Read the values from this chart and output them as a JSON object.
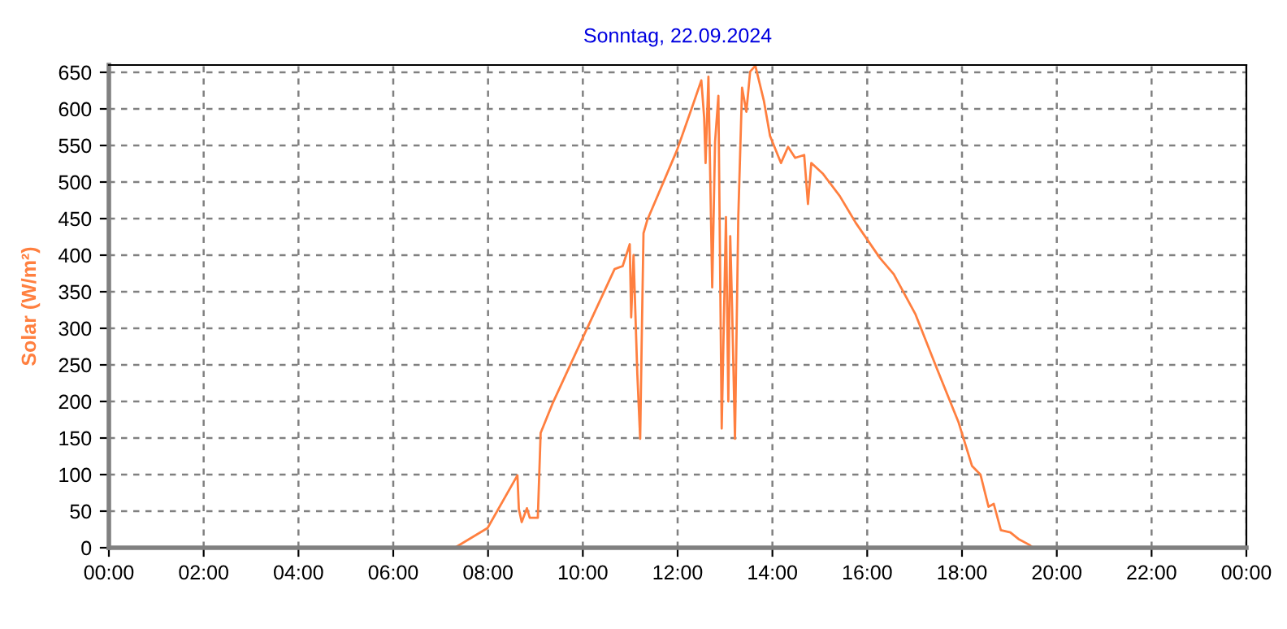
{
  "chart_data": {
    "type": "line",
    "title": "Sonntag, 22.09.2024",
    "ylabel": "Solar (W/m²)",
    "x": [
      0,
      7.3,
      7.99,
      8.62,
      8.65,
      8.71,
      8.82,
      8.88,
      9.05,
      9.11,
      9.36,
      10.04,
      10.67,
      10.84,
      10.99,
      11.02,
      11.07,
      11.15,
      11.21,
      11.24,
      11.28,
      11.36,
      11.99,
      12.33,
      12.5,
      12.56,
      12.59,
      12.65,
      12.73,
      12.79,
      12.86,
      12.93,
      13.02,
      13.07,
      13.11,
      13.15,
      13.21,
      13.28,
      13.36,
      13.45,
      13.53,
      13.64,
      13.82,
      13.95,
      14.18,
      14.33,
      14.48,
      14.67,
      14.75,
      14.82,
      15.07,
      15.42,
      15.76,
      16.27,
      16.56,
      17.02,
      17.47,
      17.93,
      18.21,
      18.39,
      18.56,
      18.67,
      18.82,
      19.02,
      19.19,
      19.42,
      19.5,
      24
    ],
    "series": [
      {
        "color": "#ff7f3f",
        "values": [
          0,
          0,
          27,
          99,
          53,
          35,
          54,
          41,
          41,
          157,
          197,
          293,
          381,
          385,
          415,
          315,
          400,
          237,
          149,
          274,
          430,
          448,
          544,
          607,
          639,
          588,
          526,
          644,
          356,
          555,
          618,
          163,
          452,
          200,
          426,
          326,
          149,
          452,
          629,
          596,
          651,
          659,
          611,
          563,
          526,
          548,
          533,
          537,
          470,
          526,
          511,
          481,
          444,
          396,
          374,
          319,
          245,
          171,
          112,
          100,
          56,
          60,
          24,
          21,
          12,
          4,
          0,
          0
        ]
      }
    ],
    "xlim": [
      0,
      24
    ],
    "xticks": [
      {
        "value": 0,
        "label": "00:00"
      },
      {
        "value": 2,
        "label": "02:00"
      },
      {
        "value": 4,
        "label": "04:00"
      },
      {
        "value": 6,
        "label": "06:00"
      },
      {
        "value": 8,
        "label": "08:00"
      },
      {
        "value": 10,
        "label": "10:00"
      },
      {
        "value": 12,
        "label": "12:00"
      },
      {
        "value": 14,
        "label": "14:00"
      },
      {
        "value": 16,
        "label": "16:00"
      },
      {
        "value": 18,
        "label": "18:00"
      },
      {
        "value": 20,
        "label": "20:00"
      },
      {
        "value": 22,
        "label": "22:00"
      },
      {
        "value": 24,
        "label": "00:00"
      }
    ],
    "ylim": [
      0,
      660
    ],
    "yticks": [
      0,
      50,
      100,
      150,
      200,
      250,
      300,
      350,
      400,
      450,
      500,
      550,
      600,
      650
    ],
    "grid": true,
    "marker": "none",
    "line_style": "solid"
  }
}
